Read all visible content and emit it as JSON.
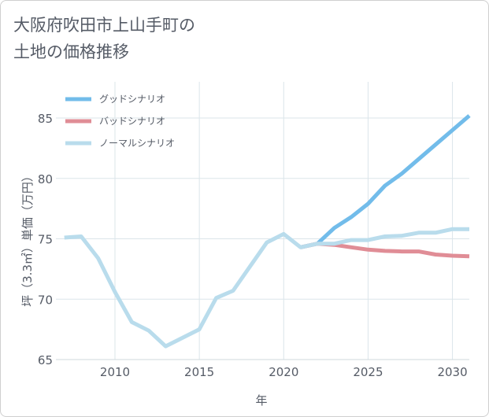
{
  "chart_data": {
    "type": "line",
    "title": "大阪府吹田市上山手町の\n土地の価格推移",
    "xlabel": "年",
    "ylabel": "坪（3.3㎡）単価（万円）",
    "xlim": [
      2006.5,
      2031
    ],
    "ylim": [
      65,
      88
    ],
    "xticks": [
      2010,
      2015,
      2020,
      2025,
      2030
    ],
    "yticks": [
      65,
      70,
      75,
      80,
      85
    ],
    "grid": true,
    "legend_position": "top-left",
    "series": [
      {
        "name": "グッドシナリオ",
        "color": "#72bcea",
        "x": [
          2021,
          2022,
          2023,
          2024,
          2025,
          2026,
          2027,
          2028,
          2029,
          2030,
          2031
        ],
        "y": [
          74.3,
          74.6,
          75.9,
          76.8,
          77.9,
          79.4,
          80.4,
          81.6,
          82.8,
          84.0,
          85.2
        ]
      },
      {
        "name": "バッドシナリオ",
        "color": "#e08d96",
        "x": [
          2021,
          2022,
          2023,
          2024,
          2025,
          2026,
          2027,
          2028,
          2029,
          2030,
          2031
        ],
        "y": [
          74.3,
          74.6,
          74.5,
          74.3,
          74.1,
          74.0,
          73.95,
          73.95,
          73.7,
          73.6,
          73.55
        ]
      },
      {
        "name": "ノーマルシナリオ",
        "color": "#b9dcec",
        "x": [
          2007,
          2008,
          2009,
          2010,
          2011,
          2012,
          2013,
          2014,
          2015,
          2016,
          2017,
          2018,
          2019,
          2020,
          2021,
          2022,
          2023,
          2024,
          2025,
          2026,
          2027,
          2028,
          2029,
          2030,
          2031
        ],
        "y": [
          75.1,
          75.2,
          73.4,
          70.6,
          68.1,
          67.4,
          66.1,
          66.8,
          67.5,
          70.1,
          70.7,
          72.7,
          74.7,
          75.4,
          74.3,
          74.6,
          74.6,
          74.9,
          74.9,
          75.2,
          75.25,
          75.5,
          75.5,
          75.8,
          75.8
        ]
      }
    ]
  }
}
